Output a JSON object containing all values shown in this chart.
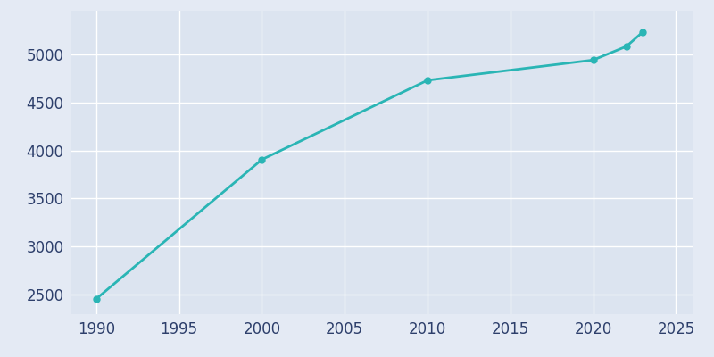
{
  "years": [
    1990,
    2000,
    2010,
    2020,
    2022,
    2023
  ],
  "population": [
    2459,
    3905,
    4728,
    4938,
    5079,
    5230
  ],
  "line_color": "#2ab5b5",
  "marker_color": "#2ab5b5",
  "bg_color": "#e4eaf4",
  "plot_bg_color": "#dce4f0",
  "grid_color": "#ffffff",
  "tick_color": "#2d3f6b",
  "xlim": [
    1988.5,
    2026
  ],
  "ylim": [
    2300,
    5450
  ],
  "xticks": [
    1990,
    1995,
    2000,
    2005,
    2010,
    2015,
    2020,
    2025
  ],
  "yticks": [
    2500,
    3000,
    3500,
    4000,
    4500,
    5000
  ],
  "line_width": 2.0,
  "marker_size": 5,
  "tick_fontsize": 12
}
